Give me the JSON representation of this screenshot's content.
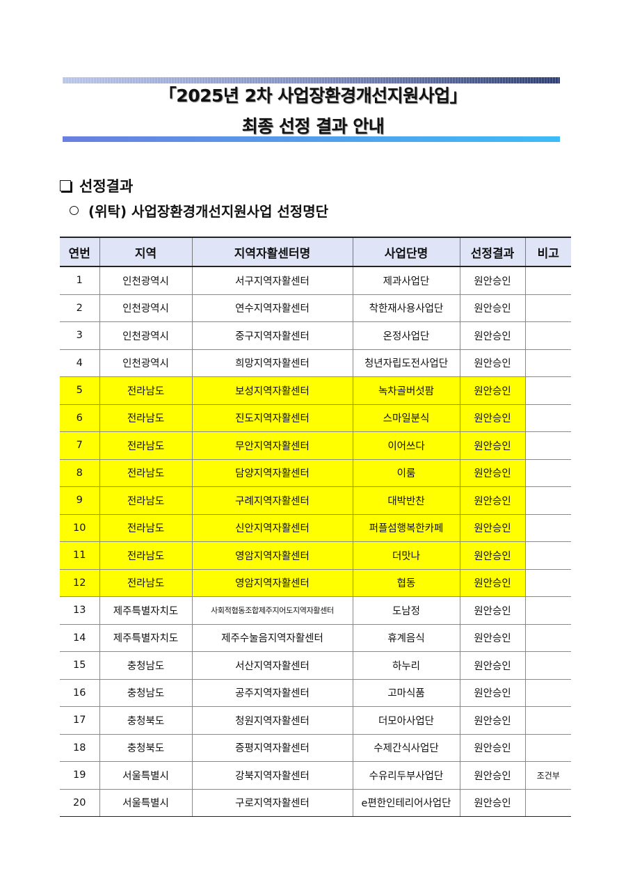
{
  "header": {
    "title_line1": "「2025년 2차 사업장환경개선지원사업」",
    "title_line2": "최종 선정 결과 안내"
  },
  "section": {
    "heading": "선정결과",
    "subheading": "(위탁) 사업장환경개선지원사업 선정명단"
  },
  "colors": {
    "highlight": "#ffff00",
    "header_bg": "#dfe4f6"
  },
  "table": {
    "columns": [
      "연번",
      "지역",
      "지역자활센터명",
      "사업단명",
      "선정결과",
      "비고"
    ],
    "rows": [
      {
        "no": "1",
        "region": "인천광역시",
        "center": "서구지역자활센터",
        "business": "제과사업단",
        "result": "원안승인",
        "note": "",
        "highlighted": false
      },
      {
        "no": "2",
        "region": "인천광역시",
        "center": "연수지역자활센터",
        "business": "착한재사용사업단",
        "result": "원안승인",
        "note": "",
        "highlighted": false
      },
      {
        "no": "3",
        "region": "인천광역시",
        "center": "중구지역자활센터",
        "business": "온정사업단",
        "result": "원안승인",
        "note": "",
        "highlighted": false
      },
      {
        "no": "4",
        "region": "인천광역시",
        "center": "희망지역자활센터",
        "business": "청년자립도전사업단",
        "result": "원안승인",
        "note": "",
        "highlighted": false
      },
      {
        "no": "5",
        "region": "전라남도",
        "center": "보성지역자활센터",
        "business": "녹차골버섯팜",
        "result": "원안승인",
        "note": "",
        "highlighted": true
      },
      {
        "no": "6",
        "region": "전라남도",
        "center": "진도지역자활센터",
        "business": "스마일분식",
        "result": "원안승인",
        "note": "",
        "highlighted": true
      },
      {
        "no": "7",
        "region": "전라남도",
        "center": "무안지역자활센터",
        "business": "이어쓰다",
        "result": "원안승인",
        "note": "",
        "highlighted": true
      },
      {
        "no": "8",
        "region": "전라남도",
        "center": "담양지역자활센터",
        "business": "이룸",
        "result": "원안승인",
        "note": "",
        "highlighted": true
      },
      {
        "no": "9",
        "region": "전라남도",
        "center": "구례지역자활센터",
        "business": "대박반찬",
        "result": "원안승인",
        "note": "",
        "highlighted": true
      },
      {
        "no": "10",
        "region": "전라남도",
        "center": "신안지역자활센터",
        "business": "퍼플섬행복한카페",
        "result": "원안승인",
        "note": "",
        "highlighted": true
      },
      {
        "no": "11",
        "region": "전라남도",
        "center": "영암지역자활센터",
        "business": "더맛나",
        "result": "원안승인",
        "note": "",
        "highlighted": true
      },
      {
        "no": "12",
        "region": "전라남도",
        "center": "영암지역자활센터",
        "business": "협동",
        "result": "원안승인",
        "note": "",
        "highlighted": true
      },
      {
        "no": "13",
        "region": "제주특별자치도",
        "center": "사회적협동조합제주지어도지역자활센터",
        "business": "도남정",
        "result": "원안승인",
        "note": "",
        "highlighted": false
      },
      {
        "no": "14",
        "region": "제주특별자치도",
        "center": "제주수눌음지역자활센터",
        "business": "휴계음식",
        "result": "원안승인",
        "note": "",
        "highlighted": false
      },
      {
        "no": "15",
        "region": "충청남도",
        "center": "서산지역자활센터",
        "business": "하누리",
        "result": "원안승인",
        "note": "",
        "highlighted": false
      },
      {
        "no": "16",
        "region": "충청남도",
        "center": "공주지역자활센터",
        "business": "고마식품",
        "result": "원안승인",
        "note": "",
        "highlighted": false
      },
      {
        "no": "17",
        "region": "충청북도",
        "center": "청원지역자활센터",
        "business": "더모아사업단",
        "result": "원안승인",
        "note": "",
        "highlighted": false
      },
      {
        "no": "18",
        "region": "충청북도",
        "center": "증평지역자활센터",
        "business": "수제간식사업단",
        "result": "원안승인",
        "note": "",
        "highlighted": false
      },
      {
        "no": "19",
        "region": "서울특별시",
        "center": "강북지역자활센터",
        "business": "수유리두부사업단",
        "result": "원안승인",
        "note": "조건부",
        "highlighted": false
      },
      {
        "no": "20",
        "region": "서울특별시",
        "center": "구로지역자활센터",
        "business": "e편한인테리어사업단",
        "result": "원안승인",
        "note": "",
        "highlighted": false
      }
    ]
  }
}
